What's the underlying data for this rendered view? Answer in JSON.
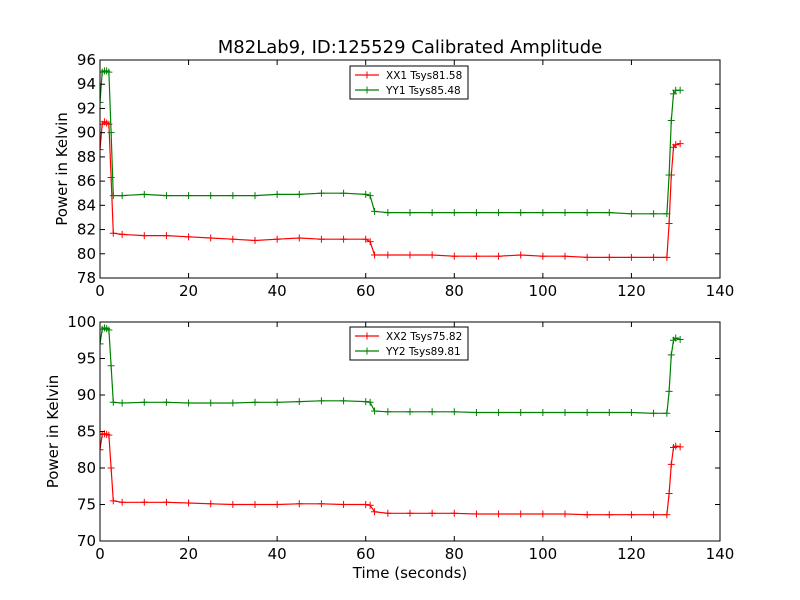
{
  "title": "M82Lab9, ID:125529 Calibrated Amplitude",
  "chart_data": [
    {
      "type": "line",
      "xlabel": "",
      "ylabel": "Power in Kelvin",
      "xlim": [
        0,
        140
      ],
      "ylim": [
        78,
        96
      ],
      "xticks": [
        0,
        20,
        40,
        60,
        80,
        100,
        120,
        140
      ],
      "yticks": [
        78,
        80,
        82,
        84,
        86,
        88,
        90,
        92,
        94,
        96
      ],
      "grid": false,
      "legend_position": "top-center",
      "series": [
        {
          "name": "XX1 Tsys81.58",
          "color": "#ff0000",
          "points": [
            [
              0,
              88.6
            ],
            [
              0.5,
              90.7
            ],
            [
              1,
              90.9
            ],
            [
              1.5,
              90.8
            ],
            [
              2,
              90.7
            ],
            [
              2.5,
              86.3
            ],
            [
              3,
              81.7
            ],
            [
              5,
              81.6
            ],
            [
              10,
              81.5
            ],
            [
              15,
              81.5
            ],
            [
              20,
              81.4
            ],
            [
              25,
              81.3
            ],
            [
              30,
              81.2
            ],
            [
              35,
              81.1
            ],
            [
              40,
              81.2
            ],
            [
              45,
              81.3
            ],
            [
              50,
              81.2
            ],
            [
              55,
              81.2
            ],
            [
              60,
              81.2
            ],
            [
              61,
              81.0
            ],
            [
              62,
              79.9
            ],
            [
              65,
              79.9
            ],
            [
              70,
              79.9
            ],
            [
              75,
              79.9
            ],
            [
              80,
              79.8
            ],
            [
              85,
              79.8
            ],
            [
              90,
              79.8
            ],
            [
              95,
              79.9
            ],
            [
              100,
              79.8
            ],
            [
              105,
              79.8
            ],
            [
              110,
              79.7
            ],
            [
              115,
              79.7
            ],
            [
              120,
              79.7
            ],
            [
              125,
              79.7
            ],
            [
              128,
              79.7
            ],
            [
              128.5,
              82.5
            ],
            [
              129,
              86.5
            ],
            [
              129.5,
              88.8
            ],
            [
              130,
              89.0
            ],
            [
              131,
              89.1
            ]
          ]
        },
        {
          "name": "YY1 Tsys85.48",
          "color": "#008000",
          "points": [
            [
              0,
              92.5
            ],
            [
              0.5,
              95.0
            ],
            [
              1,
              95.1
            ],
            [
              1.5,
              95.1
            ],
            [
              2,
              95.0
            ],
            [
              2.5,
              90.0
            ],
            [
              3,
              84.8
            ],
            [
              5,
              84.8
            ],
            [
              10,
              84.9
            ],
            [
              15,
              84.8
            ],
            [
              20,
              84.8
            ],
            [
              25,
              84.8
            ],
            [
              30,
              84.8
            ],
            [
              35,
              84.8
            ],
            [
              40,
              84.9
            ],
            [
              45,
              84.9
            ],
            [
              50,
              85.0
            ],
            [
              55,
              85.0
            ],
            [
              60,
              84.9
            ],
            [
              61,
              84.8
            ],
            [
              62,
              83.5
            ],
            [
              65,
              83.4
            ],
            [
              70,
              83.4
            ],
            [
              75,
              83.4
            ],
            [
              80,
              83.4
            ],
            [
              85,
              83.4
            ],
            [
              90,
              83.4
            ],
            [
              95,
              83.4
            ],
            [
              100,
              83.4
            ],
            [
              105,
              83.4
            ],
            [
              110,
              83.4
            ],
            [
              115,
              83.4
            ],
            [
              120,
              83.3
            ],
            [
              125,
              83.3
            ],
            [
              128,
              83.3
            ],
            [
              128.5,
              86.5
            ],
            [
              129,
              91.0
            ],
            [
              129.5,
              93.2
            ],
            [
              130,
              93.5
            ],
            [
              131,
              93.5
            ]
          ]
        }
      ]
    },
    {
      "type": "line",
      "xlabel": "Time (seconds)",
      "ylabel": "Power in Kelvin",
      "xlim": [
        0,
        140
      ],
      "ylim": [
        70,
        100
      ],
      "xticks": [
        0,
        20,
        40,
        60,
        80,
        100,
        120,
        140
      ],
      "yticks": [
        70,
        75,
        80,
        85,
        90,
        95,
        100
      ],
      "grid": false,
      "legend_position": "top-center",
      "series": [
        {
          "name": "XX2 Tsys75.82",
          "color": "#ff0000",
          "points": [
            [
              0,
              82.5
            ],
            [
              0.5,
              84.6
            ],
            [
              1,
              84.7
            ],
            [
              1.5,
              84.6
            ],
            [
              2,
              84.5
            ],
            [
              2.5,
              80.0
            ],
            [
              3,
              75.5
            ],
            [
              5,
              75.3
            ],
            [
              10,
              75.3
            ],
            [
              15,
              75.3
            ],
            [
              20,
              75.2
            ],
            [
              25,
              75.1
            ],
            [
              30,
              75.0
            ],
            [
              35,
              75.0
            ],
            [
              40,
              75.0
            ],
            [
              45,
              75.1
            ],
            [
              50,
              75.1
            ],
            [
              55,
              75.0
            ],
            [
              60,
              75.0
            ],
            [
              61,
              74.9
            ],
            [
              62,
              74.0
            ],
            [
              65,
              73.8
            ],
            [
              70,
              73.8
            ],
            [
              75,
              73.8
            ],
            [
              80,
              73.8
            ],
            [
              85,
              73.7
            ],
            [
              90,
              73.7
            ],
            [
              95,
              73.7
            ],
            [
              100,
              73.7
            ],
            [
              105,
              73.7
            ],
            [
              110,
              73.6
            ],
            [
              115,
              73.6
            ],
            [
              120,
              73.6
            ],
            [
              125,
              73.6
            ],
            [
              128,
              73.6
            ],
            [
              128.5,
              76.5
            ],
            [
              129,
              80.5
            ],
            [
              129.5,
              82.8
            ],
            [
              130,
              83.0
            ],
            [
              131,
              82.9
            ]
          ]
        },
        {
          "name": "YY2 Tsys89.81",
          "color": "#008000",
          "points": [
            [
              0,
              97.0
            ],
            [
              0.5,
              99.0
            ],
            [
              1,
              99.2
            ],
            [
              1.5,
              99.1
            ],
            [
              2,
              98.9
            ],
            [
              2.5,
              94.0
            ],
            [
              3,
              89.0
            ],
            [
              5,
              88.9
            ],
            [
              10,
              89.0
            ],
            [
              15,
              89.0
            ],
            [
              20,
              88.9
            ],
            [
              25,
              88.9
            ],
            [
              30,
              88.9
            ],
            [
              35,
              89.0
            ],
            [
              40,
              89.0
            ],
            [
              45,
              89.1
            ],
            [
              50,
              89.2
            ],
            [
              55,
              89.2
            ],
            [
              60,
              89.1
            ],
            [
              61,
              89.0
            ],
            [
              62,
              87.8
            ],
            [
              65,
              87.7
            ],
            [
              70,
              87.7
            ],
            [
              75,
              87.7
            ],
            [
              80,
              87.7
            ],
            [
              85,
              87.6
            ],
            [
              90,
              87.6
            ],
            [
              95,
              87.6
            ],
            [
              100,
              87.6
            ],
            [
              105,
              87.6
            ],
            [
              110,
              87.6
            ],
            [
              115,
              87.6
            ],
            [
              120,
              87.6
            ],
            [
              125,
              87.5
            ],
            [
              128,
              87.5
            ],
            [
              128.5,
              90.5
            ],
            [
              129,
              95.5
            ],
            [
              129.5,
              97.5
            ],
            [
              130,
              97.8
            ],
            [
              131,
              97.6
            ]
          ]
        }
      ]
    }
  ]
}
